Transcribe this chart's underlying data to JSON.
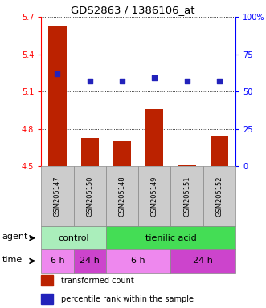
{
  "title": "GDS2863 / 1386106_at",
  "samples": [
    "GSM205147",
    "GSM205150",
    "GSM205148",
    "GSM205149",
    "GSM205151",
    "GSM205152"
  ],
  "bar_values": [
    5.63,
    4.73,
    4.7,
    4.96,
    4.51,
    4.75
  ],
  "bar_bottom": 4.5,
  "percentile_values": [
    62,
    57,
    57,
    59,
    57,
    57
  ],
  "ylim_left": [
    4.5,
    5.7
  ],
  "ylim_right": [
    0,
    100
  ],
  "yticks_left": [
    4.5,
    4.8,
    5.1,
    5.4,
    5.7
  ],
  "ytick_labels_left": [
    "4.5",
    "4.8",
    "5.1",
    "5.4",
    "5.7"
  ],
  "yticks_right": [
    0,
    25,
    50,
    75,
    100
  ],
  "ytick_labels_right": [
    "0",
    "25",
    "50",
    "75",
    "100%"
  ],
  "bar_color": "#bb2200",
  "dot_color": "#2222bb",
  "sample_bg_color": "#cccccc",
  "agent_spans": [
    {
      "label": "control",
      "start": 0,
      "end": 2,
      "color": "#aaeebb"
    },
    {
      "label": "tienilic acid",
      "start": 2,
      "end": 6,
      "color": "#44dd55"
    }
  ],
  "time_spans": [
    {
      "label": "6 h",
      "start": 0,
      "end": 1,
      "color": "#ee88ee"
    },
    {
      "label": "24 h",
      "start": 1,
      "end": 2,
      "color": "#cc44cc"
    },
    {
      "label": "6 h",
      "start": 2,
      "end": 4,
      "color": "#ee88ee"
    },
    {
      "label": "24 h",
      "start": 4,
      "end": 6,
      "color": "#cc44cc"
    }
  ],
  "legend_items": [
    {
      "color": "#bb2200",
      "label": "transformed count"
    },
    {
      "color": "#2222bb",
      "label": "percentile rank within the sample"
    }
  ]
}
